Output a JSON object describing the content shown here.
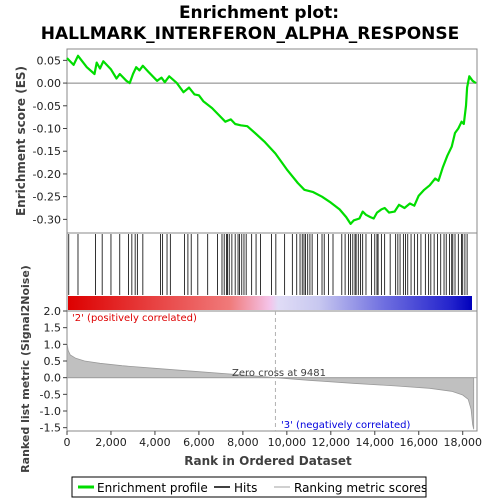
{
  "chart_data": {
    "type": "line",
    "title_line1": "Enrichment plot:",
    "title_line2": "HALLMARK_INTERFERON_ALPHA_RESPONSE",
    "es_panel": {
      "ylabel": "Enrichment score (ES)",
      "ylim": [
        -0.33,
        0.075
      ],
      "yticks": [
        0.05,
        0.0,
        -0.05,
        -0.1,
        -0.15,
        -0.2,
        -0.25,
        -0.3
      ],
      "ytick_labels": [
        "0.05",
        "0.00",
        "-0.05",
        "-0.10",
        "-0.15",
        "-0.20",
        "-0.25",
        "-0.30"
      ],
      "line_color": "#00dd00",
      "zero_line": true,
      "profile": [
        [
          0,
          0.055
        ],
        [
          300,
          0.04
        ],
        [
          500,
          0.06
        ],
        [
          900,
          0.035
        ],
        [
          1250,
          0.02
        ],
        [
          1350,
          0.045
        ],
        [
          1500,
          0.032
        ],
        [
          1650,
          0.048
        ],
        [
          2000,
          0.03
        ],
        [
          2250,
          0.01
        ],
        [
          2400,
          0.02
        ],
        [
          2700,
          0.005
        ],
        [
          2850,
          0.0
        ],
        [
          3000,
          0.02
        ],
        [
          3150,
          0.035
        ],
        [
          3300,
          0.028
        ],
        [
          3450,
          0.038
        ],
        [
          3700,
          0.025
        ],
        [
          4100,
          0.005
        ],
        [
          4300,
          0.012
        ],
        [
          4450,
          0.002
        ],
        [
          4650,
          0.015
        ],
        [
          5000,
          0.0
        ],
        [
          5300,
          -0.02
        ],
        [
          5550,
          -0.01
        ],
        [
          5800,
          -0.025
        ],
        [
          6000,
          -0.027
        ],
        [
          6200,
          -0.04
        ],
        [
          6600,
          -0.055
        ],
        [
          6900,
          -0.07
        ],
        [
          7200,
          -0.085
        ],
        [
          7450,
          -0.08
        ],
        [
          7650,
          -0.09
        ],
        [
          7900,
          -0.093
        ],
        [
          8200,
          -0.095
        ],
        [
          8600,
          -0.112
        ],
        [
          9000,
          -0.13
        ],
        [
          9481,
          -0.155
        ],
        [
          10000,
          -0.19
        ],
        [
          10500,
          -0.22
        ],
        [
          10800,
          -0.235
        ],
        [
          11200,
          -0.24
        ],
        [
          11600,
          -0.25
        ],
        [
          12000,
          -0.263
        ],
        [
          12400,
          -0.278
        ],
        [
          12700,
          -0.295
        ],
        [
          12900,
          -0.31
        ],
        [
          13050,
          -0.302
        ],
        [
          13300,
          -0.298
        ],
        [
          13450,
          -0.283
        ],
        [
          13600,
          -0.29
        ],
        [
          13800,
          -0.295
        ],
        [
          13950,
          -0.298
        ],
        [
          14100,
          -0.285
        ],
        [
          14300,
          -0.278
        ],
        [
          14450,
          -0.275
        ],
        [
          14650,
          -0.285
        ],
        [
          14900,
          -0.283
        ],
        [
          15100,
          -0.268
        ],
        [
          15350,
          -0.275
        ],
        [
          15600,
          -0.265
        ],
        [
          15800,
          -0.27
        ],
        [
          16000,
          -0.248
        ],
        [
          16250,
          -0.235
        ],
        [
          16500,
          -0.225
        ],
        [
          16750,
          -0.21
        ],
        [
          16900,
          -0.215
        ],
        [
          17100,
          -0.185
        ],
        [
          17300,
          -0.16
        ],
        [
          17500,
          -0.14
        ],
        [
          17650,
          -0.11
        ],
        [
          17800,
          -0.1
        ],
        [
          17950,
          -0.085
        ],
        [
          18050,
          -0.09
        ],
        [
          18150,
          -0.05
        ],
        [
          18200,
          -0.01
        ],
        [
          18300,
          0.015
        ],
        [
          18450,
          0.005
        ],
        [
          18600,
          0.0
        ]
      ]
    },
    "hits": [
      80,
      500,
      1300,
      1600,
      2000,
      2400,
      2800,
      2950,
      3100,
      3200,
      3450,
      4250,
      4350,
      4550,
      4700,
      5350,
      5500,
      5650,
      5950,
      6400,
      6850,
      7050,
      7150,
      7250,
      7300,
      7380,
      7500,
      7650,
      7780,
      7850,
      7950,
      8050,
      8150,
      8400,
      8600,
      8800,
      9300,
      9500,
      9900,
      10250,
      10450,
      10600,
      10700,
      10780,
      10850,
      10950,
      11050,
      11150,
      11400,
      11600,
      11700,
      11900,
      12100,
      12500,
      12650,
      12800,
      12900,
      13000,
      13100,
      13150,
      13250,
      13350,
      13450,
      13600,
      13850,
      14000,
      14100,
      14150,
      14300,
      14450,
      14700,
      14950,
      15050,
      15150,
      15300,
      15400,
      15500,
      15650,
      15800,
      15950,
      16100,
      16300,
      16450,
      16550,
      16700,
      16850,
      17000,
      17150,
      17250,
      17400,
      17500,
      17550,
      17650,
      17800,
      17950,
      18000,
      18100,
      18200
    ],
    "metric_panel": {
      "ylabel": "Ranked list metric (Signal2Noise)",
      "ylim": [
        -1.6,
        2.0
      ],
      "yticks": [
        2.0,
        1.5,
        1.0,
        0.5,
        0.0,
        -0.5,
        -1.0,
        -1.5
      ],
      "ytick_labels": [
        "2.0",
        "1.5",
        "1.0",
        "0.5",
        "0.0",
        "-0.5",
        "-1.0",
        "-1.5"
      ],
      "zero_cross": 9481,
      "zero_cross_label": "Zero cross at 9481",
      "pos_label": "'2' (positively correlated)",
      "neg_label": "'3' (negatively correlated)",
      "pos_color": "#dd0000",
      "neg_color": "#0000dd",
      "curve": [
        [
          0,
          1.05
        ],
        [
          50,
          0.82
        ],
        [
          150,
          0.68
        ],
        [
          400,
          0.58
        ],
        [
          800,
          0.5
        ],
        [
          1500,
          0.43
        ],
        [
          2500,
          0.36
        ],
        [
          4000,
          0.28
        ],
        [
          6000,
          0.18
        ],
        [
          8000,
          0.08
        ],
        [
          9481,
          0.0
        ],
        [
          11000,
          -0.08
        ],
        [
          13000,
          -0.17
        ],
        [
          15000,
          -0.25
        ],
        [
          16500,
          -0.32
        ],
        [
          17500,
          -0.41
        ],
        [
          18000,
          -0.52
        ],
        [
          18250,
          -0.65
        ],
        [
          18380,
          -0.95
        ],
        [
          18450,
          -1.4
        ],
        [
          18500,
          -1.55
        ]
      ]
    },
    "xlabel": "Rank in Ordered Dataset",
    "xlim": [
      0,
      18650
    ],
    "xticks": [
      0,
      2000,
      4000,
      6000,
      8000,
      10000,
      12000,
      14000,
      16000,
      18000
    ],
    "xtick_labels": [
      "0",
      "2,000",
      "4,000",
      "6,000",
      "8,000",
      "10,000",
      "12,000",
      "14,000",
      "16,000",
      "18,000"
    ],
    "n_genes": 18500,
    "legend": [
      "Enrichment profile",
      "Hits",
      "Ranking metric scores"
    ]
  }
}
